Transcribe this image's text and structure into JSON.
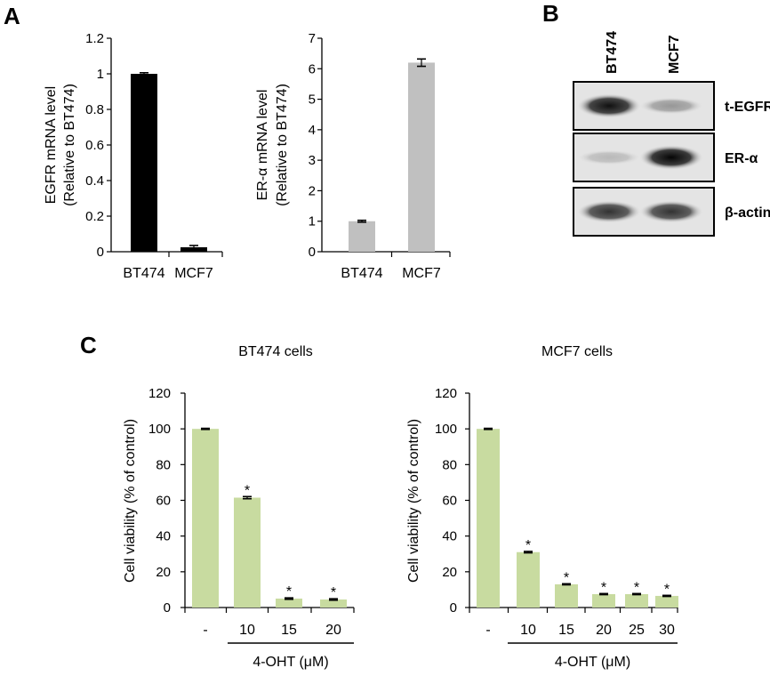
{
  "panel_labels": {
    "a": "A",
    "b": "B",
    "c": "C"
  },
  "chart_data": [
    {
      "id": "egfr",
      "type": "bar",
      "ylabel": [
        "EGFR mRNA level",
        "(Relative to BT474)"
      ],
      "categories": [
        "BT474",
        "MCF7"
      ],
      "values": [
        1.0,
        0.025
      ],
      "errors": [
        0.006,
        0.01
      ],
      "ylim": [
        0,
        1.2
      ],
      "ticks": [
        "0",
        "0.2",
        "0.4",
        "0.6",
        "0.8",
        "1",
        "1.2"
      ],
      "color": "#000000"
    },
    {
      "id": "era",
      "type": "bar",
      "ylabel": [
        "ER-α mRNA level",
        "(Relative to BT474)"
      ],
      "categories": [
        "BT474",
        "MCF7"
      ],
      "values": [
        1.0,
        6.2
      ],
      "errors": [
        0.03,
        0.12
      ],
      "ylim": [
        0,
        7
      ],
      "ticks": [
        "0",
        "1",
        "2",
        "3",
        "4",
        "5",
        "6",
        "7"
      ],
      "color": "#c0c0c0"
    },
    {
      "id": "bt474",
      "type": "bar",
      "title": "BT474 cells",
      "ylabel": "Cell viability (% of control)",
      "categories": [
        "-",
        "10",
        "15",
        "20"
      ],
      "values": [
        100,
        61.5,
        5,
        4.5
      ],
      "errors": [
        0.3,
        0.6,
        0.4,
        0.4
      ],
      "stars": [
        "",
        "*",
        "*",
        "*"
      ],
      "ylim": [
        0,
        120
      ],
      "ticks": [
        "0",
        "20",
        "40",
        "60",
        "80",
        "100",
        "120"
      ],
      "xlabel": "4-OHT (μM)",
      "color": "#c8dba0"
    },
    {
      "id": "mcf7",
      "type": "bar",
      "title": "MCF7 cells",
      "ylabel": "Cell viability (% of control)",
      "categories": [
        "-",
        "10",
        "15",
        "20",
        "25",
        "30"
      ],
      "values": [
        100,
        31,
        13,
        7.5,
        7.5,
        6.5
      ],
      "errors": [
        0.3,
        0.4,
        0.3,
        0.3,
        0.3,
        0.3
      ],
      "stars": [
        "",
        "*",
        "*",
        "*",
        "*",
        "*"
      ],
      "ylim": [
        0,
        120
      ],
      "ticks": [
        "0",
        "20",
        "40",
        "60",
        "80",
        "100",
        "120"
      ],
      "xlabel": "4-OHT (μM)",
      "color": "#c8dba0"
    }
  ],
  "blot": {
    "lanes": [
      "BT474",
      "MCF7"
    ],
    "rows": [
      {
        "label": "t-EGFR",
        "bands": [
          0.95,
          0.35
        ]
      },
      {
        "label": "ER-α",
        "bands": [
          0.2,
          1.0
        ]
      },
      {
        "label": "β-actin",
        "bands": [
          0.8,
          0.8
        ]
      }
    ]
  }
}
